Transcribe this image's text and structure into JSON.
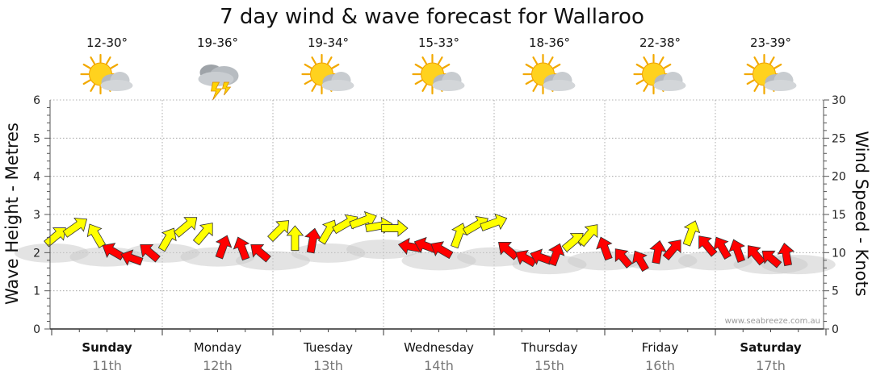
{
  "chart_data": {
    "type": "wind-wave-forecast",
    "title": "7 day wind & wave forecast for Wallaroo",
    "y_left_label": "Wave Height - Metres",
    "y_right_label": "Wind Speed - Knots",
    "y_left_range": [
      0,
      6
    ],
    "y_left_ticks": [
      "0",
      "1",
      "2",
      "3",
      "4",
      "5",
      "6"
    ],
    "y_right_range": [
      0,
      30
    ],
    "y_right_ticks": [
      "0",
      "5",
      "10",
      "15",
      "20",
      "25",
      "30"
    ],
    "watermark": "www.seabreeze.com.au",
    "days": [
      {
        "name": "Sunday",
        "date": "11th",
        "temp": "12-30°",
        "weather_icon": "sun-cloud-icon",
        "weekend": true
      },
      {
        "name": "Monday",
        "date": "12th",
        "temp": "19-36°",
        "weather_icon": "storm-cloud-icon",
        "weekend": false
      },
      {
        "name": "Tuesday",
        "date": "13th",
        "temp": "19-34°",
        "weather_icon": "sun-cloud-icon",
        "weekend": false
      },
      {
        "name": "Wednesday",
        "date": "14th",
        "temp": "15-33°",
        "weather_icon": "sun-cloud-icon",
        "weekend": false
      },
      {
        "name": "Thursday",
        "date": "15th",
        "temp": "18-36°",
        "weather_icon": "sun-cloud-icon",
        "weekend": false
      },
      {
        "name": "Friday",
        "date": "16th",
        "temp": "22-38°",
        "weather_icon": "sun-cloud-icon",
        "weekend": false
      },
      {
        "name": "Saturday",
        "date": "17th",
        "temp": "23-39°",
        "weather_icon": "sun-cloud-icon",
        "weekend": true
      }
    ],
    "wind_series": {
      "name": "Wind",
      "units": "knots",
      "colors": {
        "daytime": "#ffff00",
        "night": "#ff0000"
      },
      "points": [
        {
          "t": 0.04,
          "speed": 12.2,
          "dir": 230,
          "phase": "daytime"
        },
        {
          "t": 0.22,
          "speed": 13.4,
          "dir": 235,
          "phase": "daytime"
        },
        {
          "t": 0.4,
          "speed": 12.3,
          "dir": 150,
          "phase": "daytime"
        },
        {
          "t": 0.55,
          "speed": 10.2,
          "dir": 120,
          "phase": "night"
        },
        {
          "t": 0.72,
          "speed": 9.3,
          "dir": 110,
          "phase": "night"
        },
        {
          "t": 0.88,
          "speed": 10.1,
          "dir": 130,
          "phase": "night"
        },
        {
          "t": 1.05,
          "speed": 11.8,
          "dir": 210,
          "phase": "daytime"
        },
        {
          "t": 1.22,
          "speed": 13.5,
          "dir": 230,
          "phase": "daytime"
        },
        {
          "t": 1.38,
          "speed": 12.6,
          "dir": 220,
          "phase": "daytime"
        },
        {
          "t": 1.55,
          "speed": 10.8,
          "dir": 200,
          "phase": "night"
        },
        {
          "t": 1.72,
          "speed": 10.6,
          "dir": 160,
          "phase": "night"
        },
        {
          "t": 1.88,
          "speed": 10.1,
          "dir": 130,
          "phase": "night"
        },
        {
          "t": 2.06,
          "speed": 13.0,
          "dir": 225,
          "phase": "daytime"
        },
        {
          "t": 2.2,
          "speed": 11.9,
          "dir": 180,
          "phase": "daytime"
        },
        {
          "t": 2.36,
          "speed": 11.6,
          "dir": 190,
          "phase": "night"
        },
        {
          "t": 2.5,
          "speed": 12.8,
          "dir": 210,
          "phase": "daytime"
        },
        {
          "t": 2.66,
          "speed": 13.8,
          "dir": 240,
          "phase": "daytime"
        },
        {
          "t": 2.82,
          "speed": 14.2,
          "dir": 250,
          "phase": "daytime"
        },
        {
          "t": 2.96,
          "speed": 13.5,
          "dir": 260,
          "phase": "daytime"
        },
        {
          "t": 3.1,
          "speed": 13.2,
          "dir": 270,
          "phase": "daytime"
        },
        {
          "t": 3.24,
          "speed": 10.8,
          "dir": 100,
          "phase": "night"
        },
        {
          "t": 3.38,
          "speed": 10.9,
          "dir": 110,
          "phase": "night"
        },
        {
          "t": 3.52,
          "speed": 10.4,
          "dir": 120,
          "phase": "night"
        },
        {
          "t": 3.68,
          "speed": 12.3,
          "dir": 200,
          "phase": "daytime"
        },
        {
          "t": 3.84,
          "speed": 13.6,
          "dir": 240,
          "phase": "daytime"
        },
        {
          "t": 4.0,
          "speed": 13.9,
          "dir": 250,
          "phase": "daytime"
        },
        {
          "t": 4.12,
          "speed": 10.4,
          "dir": 130,
          "phase": "night"
        },
        {
          "t": 4.28,
          "speed": 9.3,
          "dir": 120,
          "phase": "night"
        },
        {
          "t": 4.42,
          "speed": 9.4,
          "dir": 110,
          "phase": "night"
        },
        {
          "t": 4.56,
          "speed": 9.8,
          "dir": 200,
          "phase": "night"
        },
        {
          "t": 4.72,
          "speed": 11.5,
          "dir": 230,
          "phase": "daytime"
        },
        {
          "t": 4.86,
          "speed": 12.4,
          "dir": 220,
          "phase": "daytime"
        },
        {
          "t": 5.0,
          "speed": 10.6,
          "dir": 160,
          "phase": "night"
        },
        {
          "t": 5.16,
          "speed": 9.4,
          "dir": 140,
          "phase": "night"
        },
        {
          "t": 5.32,
          "speed": 9.0,
          "dir": 150,
          "phase": "night"
        },
        {
          "t": 5.48,
          "speed": 10.1,
          "dir": 190,
          "phase": "night"
        },
        {
          "t": 5.62,
          "speed": 10.5,
          "dir": 220,
          "phase": "night"
        },
        {
          "t": 5.78,
          "speed": 12.6,
          "dir": 200,
          "phase": "daytime"
        },
        {
          "t": 5.92,
          "speed": 11.0,
          "dir": 140,
          "phase": "night"
        },
        {
          "t": 6.06,
          "speed": 10.7,
          "dir": 150,
          "phase": "night"
        },
        {
          "t": 6.2,
          "speed": 10.3,
          "dir": 160,
          "phase": "night"
        },
        {
          "t": 6.36,
          "speed": 9.8,
          "dir": 140,
          "phase": "night"
        },
        {
          "t": 6.5,
          "speed": 9.3,
          "dir": 130,
          "phase": "night"
        },
        {
          "t": 6.64,
          "speed": 9.8,
          "dir": 170,
          "phase": "night"
        }
      ]
    },
    "wave_series": {
      "name": "Wave height",
      "units": "metres",
      "color": "#cccccc",
      "points": [
        {
          "t": 0.0,
          "height": 2.2
        },
        {
          "t": 0.5,
          "height": 2.1
        },
        {
          "t": 1.0,
          "height": 2.2
        },
        {
          "t": 1.5,
          "height": 2.1
        },
        {
          "t": 2.0,
          "height": 2.0
        },
        {
          "t": 2.5,
          "height": 2.2
        },
        {
          "t": 3.0,
          "height": 2.3
        },
        {
          "t": 3.5,
          "height": 2.0
        },
        {
          "t": 4.0,
          "height": 2.1
        },
        {
          "t": 4.5,
          "height": 1.9
        },
        {
          "t": 5.0,
          "height": 2.0
        },
        {
          "t": 5.5,
          "height": 2.0
        },
        {
          "t": 6.0,
          "height": 2.0
        },
        {
          "t": 6.5,
          "height": 1.9
        },
        {
          "t": 6.75,
          "height": 1.9
        }
      ]
    }
  }
}
